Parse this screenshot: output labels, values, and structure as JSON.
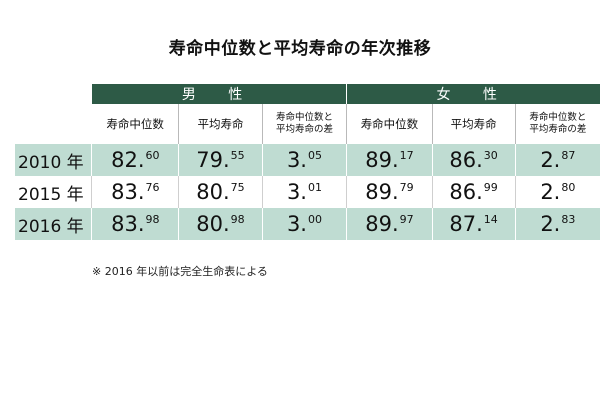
{
  "title": "寿命中位数と平均寿命の年次推移",
  "table": {
    "groups": [
      "男 性",
      "女 性"
    ],
    "headers": [
      [
        "寿命中位数"
      ],
      [
        "平均寿命"
      ],
      [
        "寿命中位数と",
        "平均寿命の差"
      ],
      [
        "寿命中位数"
      ],
      [
        "平均寿命"
      ],
      [
        "寿命中位数と",
        "平均寿命の差"
      ]
    ],
    "rows": [
      {
        "year": "2010 年",
        "cells": [
          [
            "82.",
            "60"
          ],
          [
            "79.",
            "55"
          ],
          [
            "3.",
            "05"
          ],
          [
            "89.",
            "17"
          ],
          [
            "86.",
            "30"
          ],
          [
            "2.",
            "87"
          ]
        ]
      },
      {
        "year": "2015 年",
        "cells": [
          [
            "83.",
            "76"
          ],
          [
            "80.",
            "75"
          ],
          [
            "3.",
            "01"
          ],
          [
            "89.",
            "79"
          ],
          [
            "86.",
            "99"
          ],
          [
            "2.",
            "80"
          ]
        ]
      },
      {
        "year": "2016 年",
        "cells": [
          [
            "83.",
            "98"
          ],
          [
            "80.",
            "98"
          ],
          [
            "3.",
            "00"
          ],
          [
            "89.",
            "97"
          ],
          [
            "87.",
            "14"
          ],
          [
            "2.",
            "83"
          ]
        ]
      }
    ]
  },
  "note": "※ 2016 年以前は完全生命表による",
  "colors": {
    "header_bg": "#2d5a46",
    "row_shade": "#bfdcd2"
  }
}
